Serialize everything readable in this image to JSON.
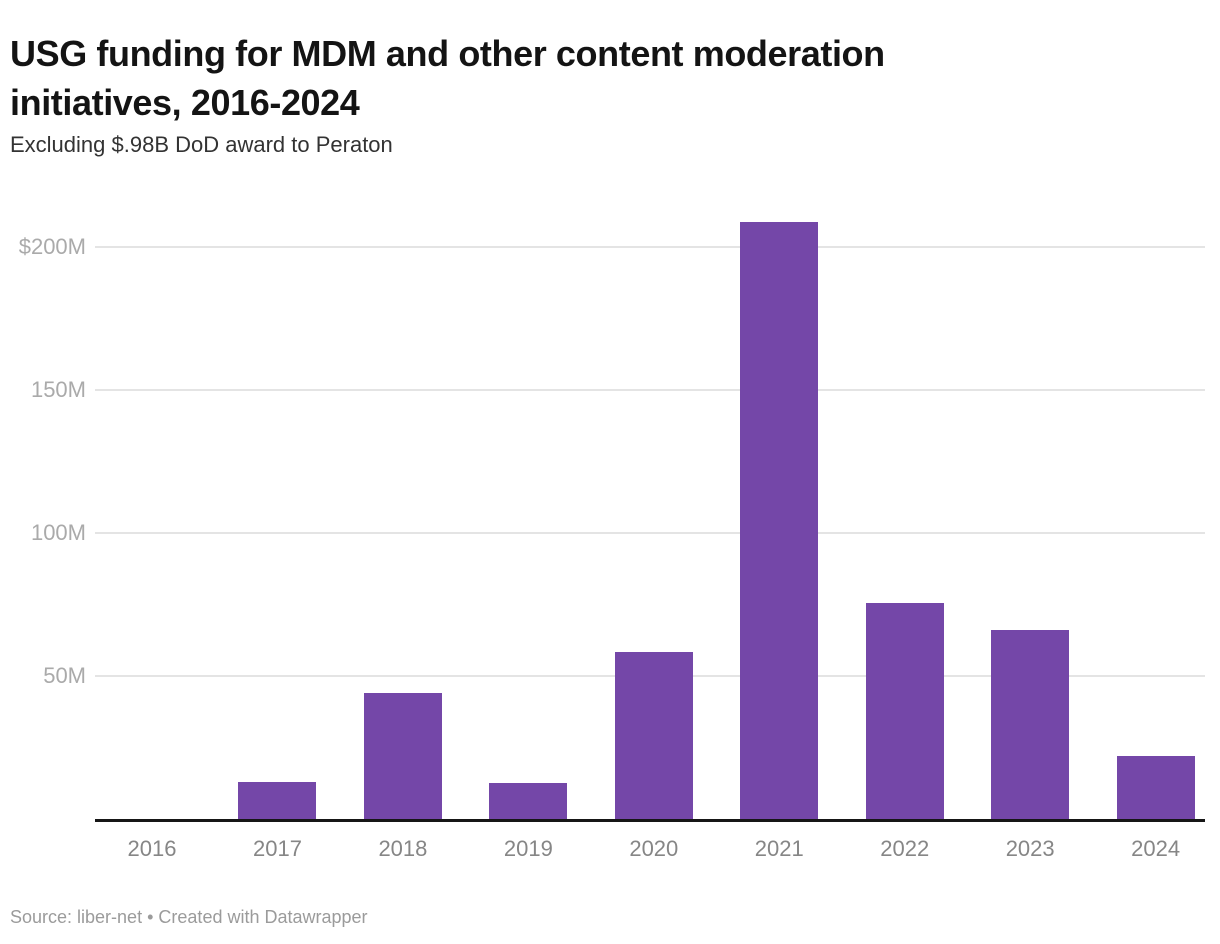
{
  "header": {
    "title_line1": "USG funding for MDM and other content moderation",
    "title_line2": "initiatives, 2016-2024",
    "subtitle": "Excluding $.98B DoD award to Peraton"
  },
  "footer": {
    "source_text": "Source: liber-net",
    "separator": "•",
    "credit_text": "Created with Datawrapper"
  },
  "colors": {
    "bar": "#7447a8",
    "gridline": "#e4e4e4",
    "axis": "#161616",
    "y_tick_text": "#aaaaaa",
    "x_tick_text": "#868686",
    "title_text": "#141414",
    "subtitle_text": "#333333",
    "footer_text": "#9b9b9b",
    "background": "#ffffff"
  },
  "chart_data": {
    "type": "bar",
    "title": "USG funding for MDM and other content moderation initiatives, 2016-2024",
    "subtitle": "Excluding $.98B DoD award to Peraton",
    "source": "Source: liber-net • Created with Datawrapper",
    "unit": "USD millions",
    "categories": [
      "2016",
      "2017",
      "2018",
      "2019",
      "2020",
      "2021",
      "2022",
      "2023",
      "2024"
    ],
    "values": [
      0,
      13,
      44,
      12.5,
      58.5,
      209,
      75.5,
      66,
      22
    ],
    "xlabel": "",
    "ylabel": "",
    "ylim": [
      0,
      213
    ],
    "yticks": [
      {
        "value": 50,
        "label": "50M"
      },
      {
        "value": 100,
        "label": "100M"
      },
      {
        "value": 150,
        "label": "150M"
      },
      {
        "value": 200,
        "label": "$200M"
      }
    ],
    "grid": true,
    "legend": false,
    "bar_color": "#7447a8"
  }
}
